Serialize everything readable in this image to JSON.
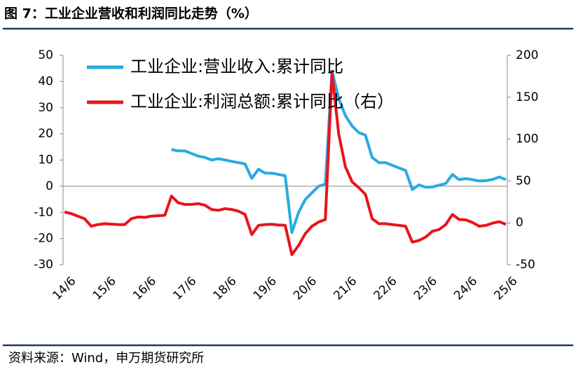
{
  "chart_data": {
    "type": "line",
    "title": "图 7：工业企业营收和利润同比走势（%）",
    "source": "资料来源：Wind，申万期货研究所",
    "categories": [
      "14/6",
      null,
      null,
      null,
      null,
      null,
      "15/6",
      null,
      null,
      null,
      null,
      null,
      "16/6",
      null,
      null,
      null,
      null,
      null,
      "17/6",
      null,
      null,
      null,
      null,
      null,
      "18/6",
      null,
      null,
      null,
      null,
      null,
      "19/6",
      null,
      null,
      null,
      null,
      null,
      "20/6",
      null,
      null,
      null,
      null,
      null,
      "21/6",
      null,
      null,
      null,
      null,
      null,
      "22/6",
      null,
      null,
      null,
      null,
      null,
      "23/6",
      null,
      null,
      null,
      null,
      null,
      "24/6",
      null,
      null,
      null,
      null,
      null,
      "25/6"
    ],
    "series": [
      {
        "name": "工业企业:营业收入:累计同比",
        "color": "#29ABE2",
        "values": [
          null,
          null,
          null,
          null,
          null,
          null,
          null,
          null,
          null,
          null,
          null,
          null,
          null,
          null,
          null,
          null,
          14,
          13.5,
          13.5,
          12.5,
          11.5,
          11,
          10,
          10.5,
          10,
          9.5,
          9,
          8.5,
          3,
          6.5,
          5,
          5,
          4.5,
          4,
          -17.7,
          -10,
          -5.1,
          -2.5,
          0,
          0.8,
          44,
          33.5,
          27,
          23,
          20.5,
          19.5,
          11,
          9,
          9,
          8,
          7,
          6,
          -1.3,
          0.5,
          -0.4,
          -0.3,
          0.4,
          1,
          4.5,
          2.5,
          2.9,
          2.5,
          2,
          2.1,
          2.6,
          3.5,
          2.5
        ]
      },
      {
        "name": "工业企业:利润总额:累计同比（右）",
        "color": "#E8141B",
        "axis": "y2",
        "values": [
          13,
          11,
          8,
          5,
          -4,
          -2,
          -1,
          -1.5,
          -2,
          -2,
          5,
          7,
          6.5,
          8,
          8.5,
          9,
          32,
          24,
          22,
          22,
          23,
          21,
          16,
          15,
          17,
          16,
          14,
          10,
          -14,
          -3,
          -2,
          -1.7,
          -2.5,
          -3,
          -38,
          -27,
          -13,
          -4,
          1,
          4,
          179,
          106,
          67,
          49,
          42,
          34,
          5,
          -1,
          -1,
          -2,
          -3,
          -4,
          -23,
          -21,
          -17,
          -10,
          -8,
          -2,
          10,
          4,
          3.5,
          0.5,
          -4,
          -3,
          -0.3,
          1.4,
          -1.8
        ]
      }
    ],
    "ylim": [
      -30,
      50
    ],
    "yticks": [
      -30,
      -20,
      -10,
      0,
      10,
      20,
      30,
      40,
      50
    ],
    "y2lim": [
      -50,
      200
    ],
    "y2ticks": [
      -50,
      0,
      50,
      100,
      150,
      200
    ]
  }
}
